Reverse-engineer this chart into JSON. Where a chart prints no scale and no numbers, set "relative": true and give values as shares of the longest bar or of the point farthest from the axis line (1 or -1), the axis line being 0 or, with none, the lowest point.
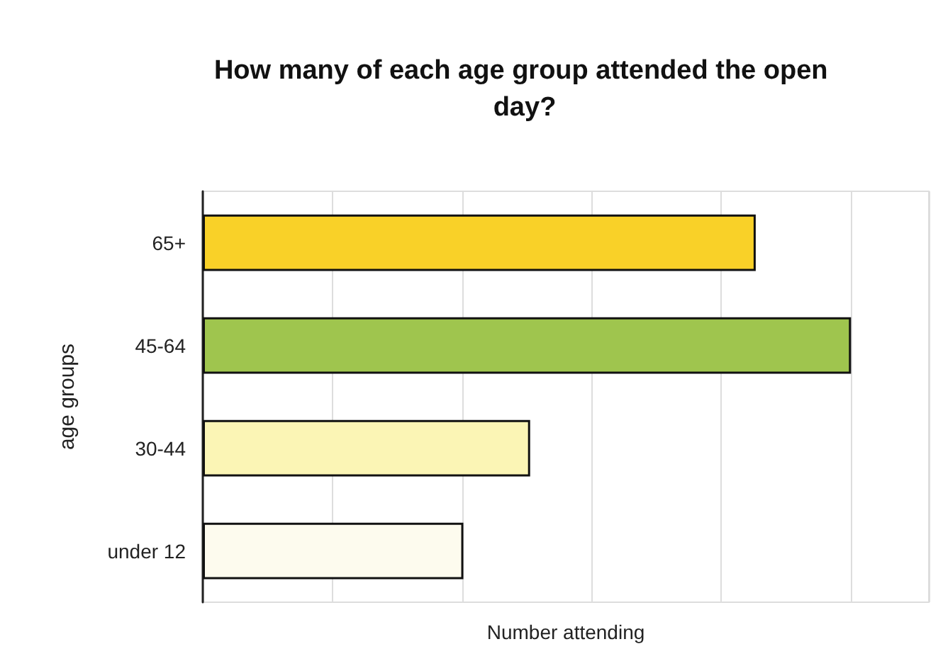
{
  "chart_data": {
    "type": "bar",
    "orientation": "horizontal",
    "relative": true,
    "title": "How many of each age group attended the open day?",
    "xlabel": "Number attending",
    "ylabel": "age groups",
    "categories": [
      "65+",
      "45-64",
      "30-44",
      "under 12"
    ],
    "values": [
      0.853,
      1,
      0.505,
      0.402
    ],
    "colors": [
      "#f9d128",
      "#9fc54e",
      "#fbf5b5",
      "#fdfbee"
    ],
    "grid": "x"
  }
}
